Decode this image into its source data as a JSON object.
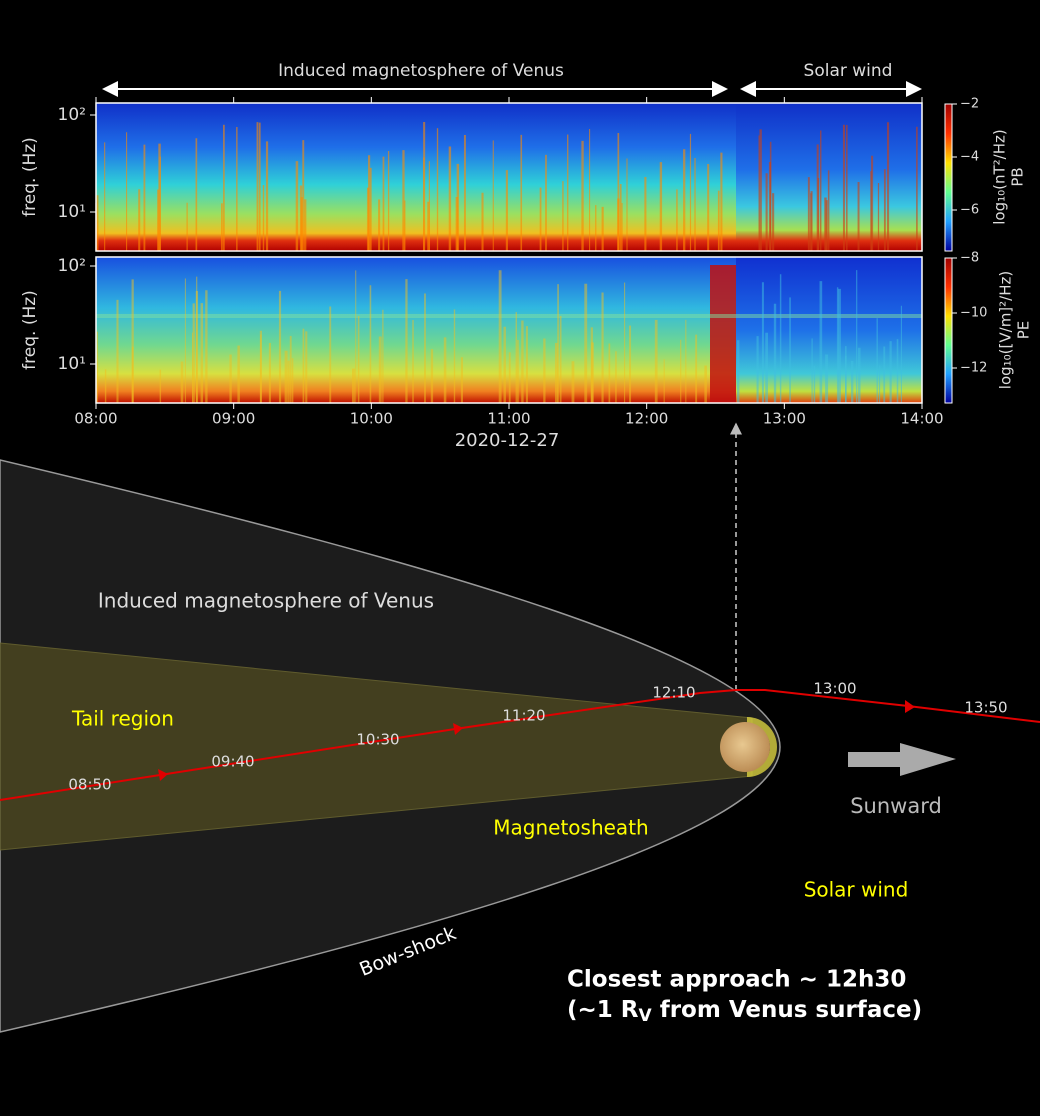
{
  "header": {
    "region_left": "Induced magnetosphere of Venus",
    "region_right": "Solar wind"
  },
  "spectrogram": {
    "y_label": "freq. (Hz)",
    "panels": [
      {
        "name": "PB",
        "colorbar_label": "log₁₀(nT²/Hz)",
        "y_ticks": [
          "10²",
          "10¹"
        ],
        "colorbar_ticks": [
          "−2",
          "−4",
          "−6"
        ]
      },
      {
        "name": "PE",
        "colorbar_label": "log₁₀([V/m]²/Hz)",
        "y_ticks": [
          "10²",
          "10¹"
        ],
        "colorbar_ticks": [
          "−8",
          "−10",
          "−12"
        ]
      }
    ],
    "x_ticks": [
      "08:00",
      "09:00",
      "10:00",
      "11:00",
      "12:00",
      "13:00",
      "14:00"
    ],
    "date": "2020-12-27"
  },
  "diagram": {
    "region_magnetosphere": "Induced magnetosphere of Venus",
    "tail_region": "Tail region",
    "magnetosheath": "Magnetosheath",
    "solar_wind": "Solar wind",
    "sunward": "Sunward",
    "bow_shock": "Bow-shock",
    "trajectory_times": [
      "08:50",
      "09:40",
      "10:30",
      "11:20",
      "12:10",
      "13:00",
      "13:50"
    ],
    "closest_approach": {
      "line1": "Closest approach ~ 12h30",
      "line2_start": "(~1 R",
      "line2_sub": "V",
      "line2_end": " from Venus surface)"
    }
  }
}
